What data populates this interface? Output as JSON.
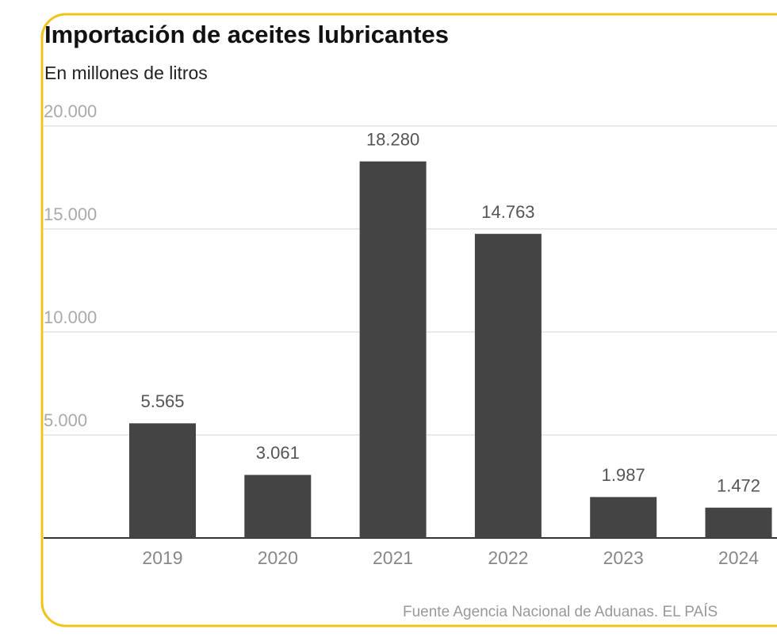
{
  "chart_data": {
    "type": "bar",
    "title": "Importación de aceites lubricantes",
    "subtitle": "En millones de litros",
    "source": "Fuente Agencia Nacional de Aduanas. EL PAÍS",
    "categories": [
      "2019",
      "2020",
      "2021",
      "2022",
      "2023",
      "2024"
    ],
    "values": [
      5565,
      3061,
      18280,
      14763,
      1987,
      1472
    ],
    "value_labels": [
      "5.565",
      "3.061",
      "18.280",
      "14.763",
      "1.987",
      "1.472"
    ],
    "color": "#444444",
    "ylim": [
      0,
      20000
    ],
    "yticks": [
      {
        "value": 5000,
        "label": "5.000"
      },
      {
        "value": 10000,
        "label": "10.000"
      },
      {
        "value": 15000,
        "label": "15.000"
      },
      {
        "value": 20000,
        "label": "20.000"
      }
    ],
    "grid": true
  }
}
